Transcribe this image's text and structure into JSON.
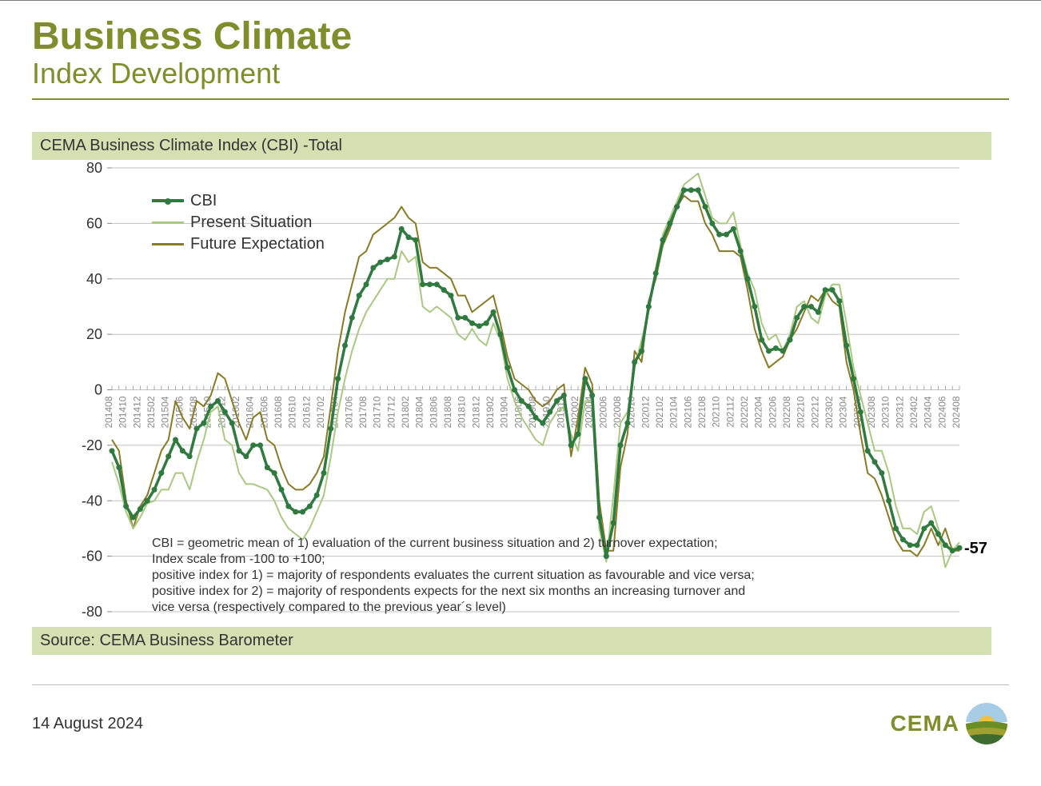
{
  "header": {
    "title_main": "Business Climate",
    "title_sub": "Index Development"
  },
  "chart": {
    "type": "line",
    "title": "CEMA Business Climate Index (CBI) -Total",
    "background_color": "#ffffff",
    "title_bar_bg": "#d4e0b1",
    "source_bar_bg": "#d4e0b1",
    "grid_color": "#c0c0c0",
    "tick_label_color": "#888888",
    "ylim": [
      -80,
      80
    ],
    "ytick_step": 20,
    "yticks": [
      -80,
      -60,
      -40,
      -20,
      0,
      20,
      40,
      60,
      80
    ],
    "xlabels": [
      "201408",
      "201410",
      "201412",
      "201502",
      "201504",
      "201506",
      "201508",
      "201510",
      "201512",
      "201602",
      "201604",
      "201606",
      "201608",
      "201610",
      "201612",
      "201702",
      "201704",
      "201706",
      "201708",
      "201710",
      "201712",
      "201802",
      "201804",
      "201806",
      "201808",
      "201810",
      "201812",
      "201902",
      "201904",
      "201906",
      "201908",
      "201910",
      "201912",
      "202002",
      "202004",
      "202006",
      "202008",
      "202010",
      "202012",
      "202102",
      "202104",
      "202106",
      "202108",
      "202110",
      "202112",
      "202202",
      "202204",
      "202206",
      "202208",
      "202210",
      "202212",
      "202302",
      "202304",
      "202306",
      "202308",
      "202310",
      "202312",
      "202402",
      "202404",
      "202406",
      "202408"
    ],
    "n_points_total": 121,
    "series": {
      "cbi": {
        "label": "CBI",
        "color": "#2f7a3e",
        "line_width": 3.5,
        "marker": "circle",
        "marker_size": 3.5,
        "data": [
          -22,
          -28,
          -42,
          -46,
          -43,
          -40,
          -36,
          -30,
          -24,
          -18,
          -22,
          -24,
          -14,
          -12,
          -6,
          -4,
          -8,
          -12,
          -22,
          -24,
          -20,
          -20,
          -28,
          -30,
          -36,
          -42,
          -44,
          -44,
          -42,
          -38,
          -30,
          -14,
          4,
          16,
          26,
          34,
          38,
          44,
          46,
          47,
          48,
          58,
          55,
          54,
          38,
          38,
          38,
          36,
          34,
          26,
          26,
          24,
          23,
          24,
          28,
          20,
          8,
          0,
          -4,
          -6,
          -10,
          -12,
          -8,
          -4,
          -2,
          -20,
          -16,
          4,
          -2,
          -46,
          -60,
          -48,
          -20,
          -12,
          10,
          14,
          30,
          42,
          54,
          60,
          66,
          72,
          72,
          72,
          66,
          60,
          56,
          56,
          58,
          50,
          40,
          30,
          18,
          14,
          15,
          14,
          18,
          26,
          30,
          30,
          28,
          36,
          36,
          32,
          16,
          4,
          -8,
          -22,
          -26,
          -30,
          -40,
          -50,
          -54,
          -56,
          -56,
          -50,
          -48,
          -52,
          -56,
          -58,
          -57
        ]
      },
      "present": {
        "label": "Present Situation",
        "color": "#a8c97f",
        "line_width": 2,
        "data": [
          -26,
          -34,
          -44,
          -50,
          -46,
          -41,
          -40,
          -36,
          -36,
          -30,
          -30,
          -36,
          -26,
          -18,
          -8,
          -6,
          -18,
          -20,
          -30,
          -34,
          -34,
          -35,
          -36,
          -40,
          -46,
          -50,
          -52,
          -54,
          -50,
          -44,
          -38,
          -24,
          -8,
          4,
          14,
          22,
          28,
          32,
          36,
          40,
          40,
          50,
          46,
          48,
          30,
          28,
          30,
          28,
          26,
          20,
          18,
          22,
          18,
          16,
          24,
          18,
          4,
          -4,
          -10,
          -14,
          -18,
          -20,
          -12,
          -8,
          -6,
          -16,
          -22,
          -4,
          -4,
          -50,
          -62,
          -38,
          -12,
          -8,
          8,
          18,
          28,
          44,
          56,
          62,
          68,
          74,
          76,
          78,
          70,
          62,
          60,
          60,
          64,
          52,
          42,
          36,
          24,
          18,
          20,
          14,
          20,
          30,
          32,
          26,
          24,
          34,
          38,
          38,
          24,
          8,
          -2,
          -12,
          -22,
          -22,
          -30,
          -42,
          -50,
          -50,
          -52,
          -44,
          -42,
          -50,
          -64,
          -58,
          -55
        ]
      },
      "future": {
        "label": "Future Expectation",
        "color": "#8a7a25",
        "line_width": 2,
        "data": [
          -18,
          -22,
          -40,
          -50,
          -42,
          -38,
          -30,
          -22,
          -18,
          -4,
          -10,
          -14,
          -4,
          -6,
          -2,
          6,
          4,
          -4,
          -12,
          -18,
          -10,
          -8,
          -18,
          -20,
          -28,
          -34,
          -36,
          -36,
          -34,
          -30,
          -24,
          -6,
          14,
          28,
          38,
          48,
          50,
          56,
          58,
          60,
          62,
          66,
          62,
          60,
          46,
          44,
          44,
          42,
          40,
          34,
          34,
          28,
          30,
          32,
          34,
          24,
          12,
          4,
          2,
          0,
          -4,
          -6,
          -4,
          0,
          2,
          -24,
          -10,
          8,
          2,
          -40,
          -58,
          -58,
          -28,
          -16,
          14,
          10,
          32,
          40,
          52,
          58,
          66,
          70,
          68,
          68,
          60,
          56,
          50,
          50,
          50,
          48,
          36,
          22,
          14,
          8,
          10,
          12,
          18,
          22,
          28,
          34,
          32,
          36,
          32,
          30,
          10,
          0,
          -16,
          -30,
          -32,
          -38,
          -46,
          -54,
          -58,
          -58,
          -60,
          -56,
          -50,
          -56,
          -50,
          -58,
          -58
        ]
      }
    },
    "end_label": "-57",
    "legend": {
      "items": [
        {
          "key": "cbi",
          "label": "CBI"
        },
        {
          "key": "present",
          "label": "Present Situation"
        },
        {
          "key": "future",
          "label": "Future Expectation"
        }
      ]
    },
    "notes": [
      "CBI = geometric mean of 1) evaluation of the current business situation and 2) turnover expectation;",
      "Index scale from -100 to +100;",
      "positive index for 1) = majority of respondents evaluates the current situation as favourable and vice versa;",
      "positive index for 2) = majority of respondents expects for the next six months an increasing turnover and",
      "vice versa (respectively compared to the previous year´s level)"
    ],
    "source": "Source: CEMA Business Barometer"
  },
  "footer": {
    "date": "14 August 2024",
    "logo_text": "CEMA",
    "logo_colors": {
      "sky": "#a7cde6",
      "sun": "#f0c040",
      "field1": "#6b8e23",
      "field2": "#a0a030",
      "field3": "#3e6b2f"
    }
  }
}
